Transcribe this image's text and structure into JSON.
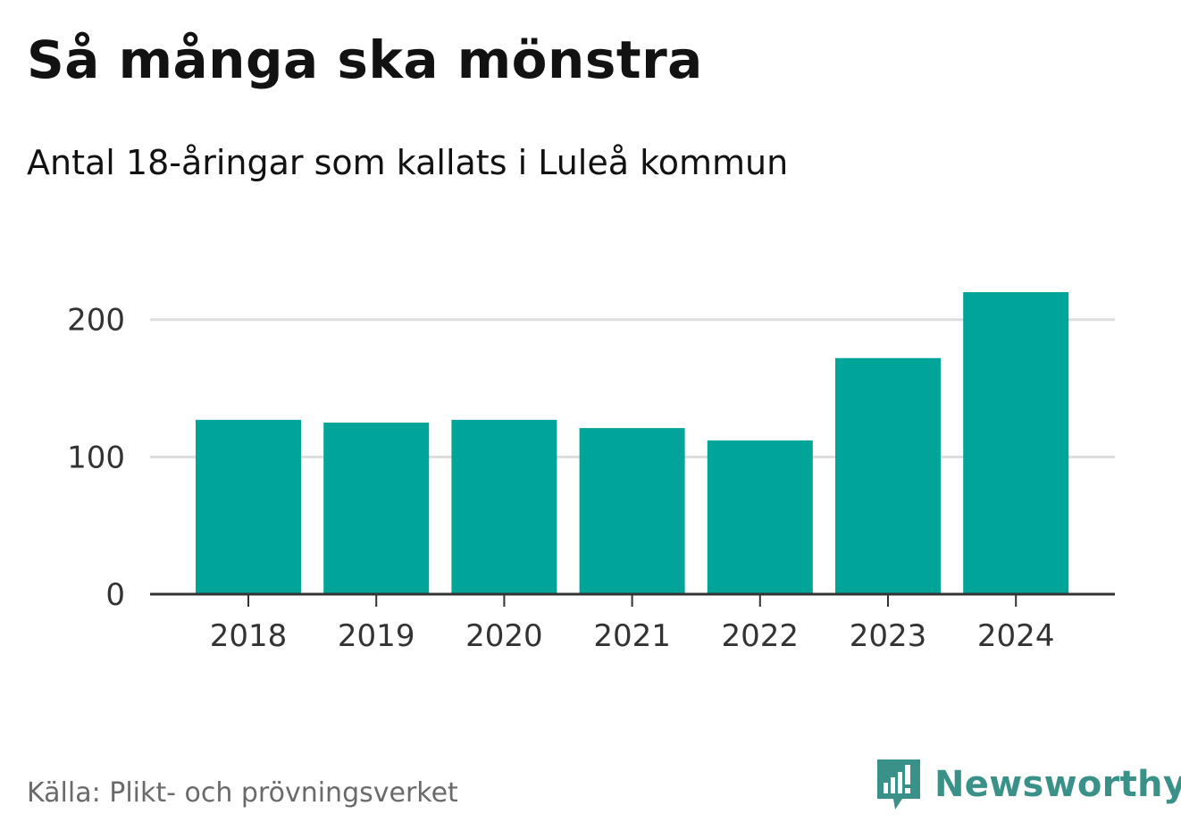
{
  "title": "Så många ska mönstra",
  "subtitle": "Antal 18-åringar som kallats i Luleå kommun",
  "source": "Källa: Plikt- och prövningsverket",
  "brand": {
    "name": "Newsworthy",
    "icon": "newsworthy-logo-icon",
    "color": "#3a9188"
  },
  "colors": {
    "bar": "#00a499",
    "grid": "#dddddd",
    "axis": "#333333"
  },
  "chart_data": {
    "type": "bar",
    "categories": [
      "2018",
      "2019",
      "2020",
      "2021",
      "2022",
      "2023",
      "2024"
    ],
    "values": [
      127,
      125,
      127,
      121,
      112,
      172,
      220
    ],
    "ylim": [
      0,
      220
    ],
    "yticks": [
      0,
      100,
      200
    ],
    "grid": true,
    "legend": "none"
  }
}
